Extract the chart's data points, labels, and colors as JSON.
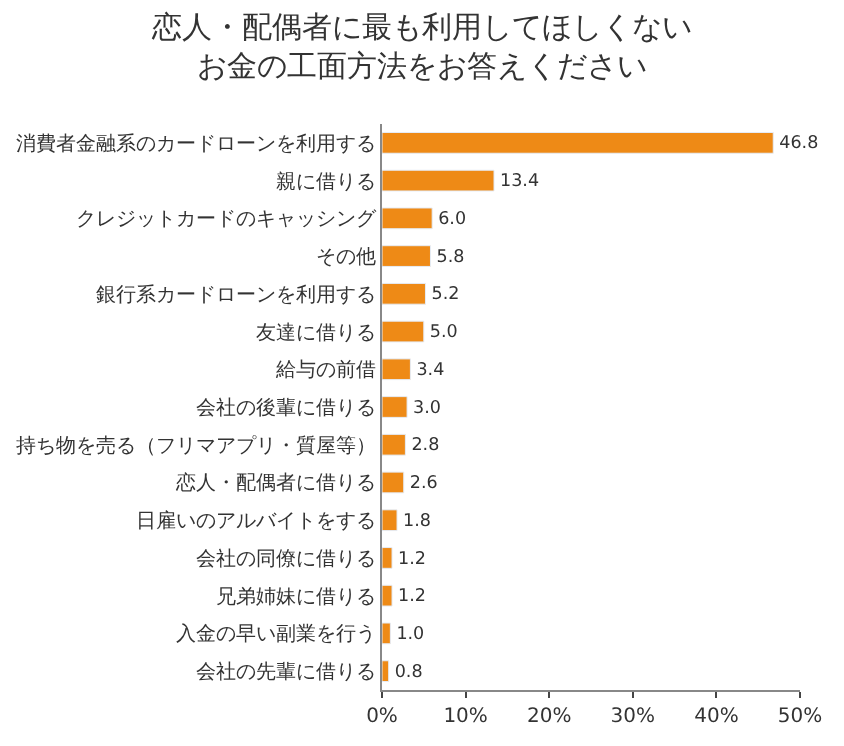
{
  "chart_data": {
    "type": "bar",
    "orientation": "horizontal",
    "title": "恋人・配偶者に最も利用してほしくないお金の工面方法をお答えください",
    "categories": [
      "消費者金融系のカードローンを利用する",
      "親に借りる",
      "クレジットカードのキャッシング",
      "その他",
      "銀行系カードローンを利用する",
      "友達に借りる",
      "給与の前借",
      "会社の後輩に借りる",
      "持ち物を売る（フリマアプリ・質屋等）",
      "恋人・配偶者に借りる",
      "日雇いのアルバイトをする",
      "会社の同僚に借りる",
      "兄弟姉妹に借りる",
      "入金の早い副業を行う",
      "会社の先輩に借りる"
    ],
    "values": [
      46.8,
      13.4,
      6.0,
      5.8,
      5.2,
      5.0,
      3.4,
      3.0,
      2.8,
      2.6,
      1.8,
      1.2,
      1.2,
      1.0,
      0.8
    ],
    "value_labels": [
      "46.8",
      "13.4",
      "6.0",
      "5.8",
      "5.2",
      "5.0",
      "3.4",
      "3.0",
      "2.8",
      "2.6",
      "1.8",
      "1.2",
      "1.2",
      "1.0",
      "0.8"
    ],
    "color": "#ee8a16",
    "xlim": [
      0,
      50
    ],
    "xticks": [
      {
        "value": 0,
        "label": "0%"
      },
      {
        "value": 10,
        "label": "10%"
      },
      {
        "value": 20,
        "label": "20%"
      },
      {
        "value": 30,
        "label": "30%"
      },
      {
        "value": 40,
        "label": "40%"
      },
      {
        "value": 50,
        "label": "50%"
      }
    ],
    "legend": false
  }
}
